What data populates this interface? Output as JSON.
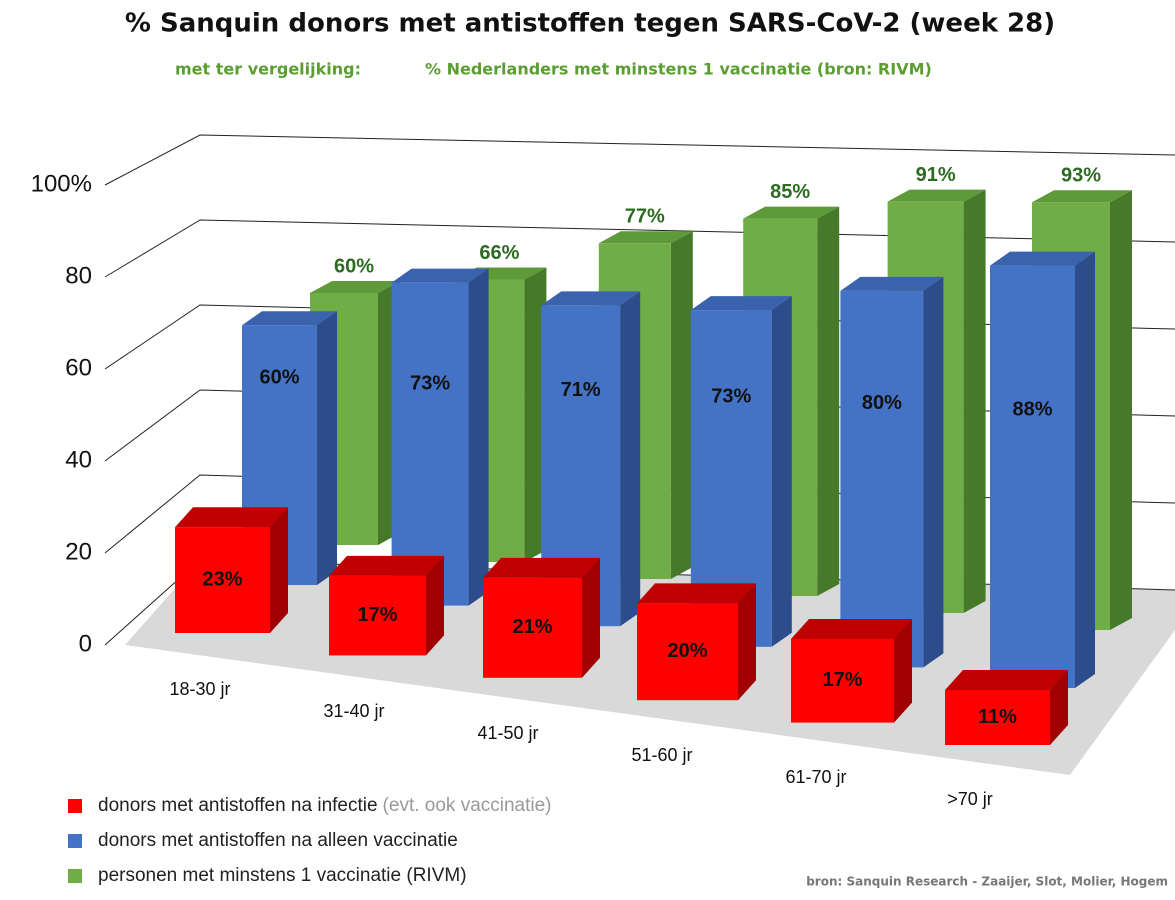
{
  "chart_data": {
    "type": "bar3d",
    "title": "% Sanquin donors met antistoffen tegen SARS-CoV-2 (week 28)",
    "subtitle_lead": "met ter vergelijking:",
    "subtitle": "% Nederlanders met minstens 1 vaccinatie (bron: RIVM)",
    "categories": [
      "18-30 jr",
      "31-40 jr",
      "41-50 jr",
      "51-60 jr",
      "61-70 jr",
      ">70 jr"
    ],
    "series": [
      {
        "name": "donors met antistoffen na infectie",
        "name_note": "(evt. ook vaccinatie)",
        "color": "#ff0000",
        "values": [
          23,
          17,
          21,
          20,
          17,
          11
        ],
        "value_labels": [
          "23%",
          "17%",
          "21%",
          "20%",
          "17%",
          "11%"
        ]
      },
      {
        "name": "donors met antistoffen na alleen vaccinatie",
        "color": "#4472c4",
        "values": [
          60,
          73,
          71,
          73,
          80,
          88
        ],
        "value_labels": [
          "60%",
          "73%",
          "71%",
          "73%",
          "80%",
          "88%"
        ]
      },
      {
        "name": "personen met minstens 1 vaccinatie (RIVM)",
        "color": "#70ad47",
        "values": [
          60,
          66,
          77,
          85,
          91,
          93
        ],
        "value_labels": [
          "60%",
          "66%",
          "77%",
          "85%",
          "91%",
          "93%"
        ]
      }
    ],
    "ylim": [
      0,
      100
    ],
    "yticks": [
      0,
      20,
      40,
      60,
      80,
      {
        "value": 100,
        "label": "100%"
      }
    ],
    "grid": true,
    "source": "bron: Sanquin Research - Zaaijer, Slot, Molier, Hogem"
  }
}
